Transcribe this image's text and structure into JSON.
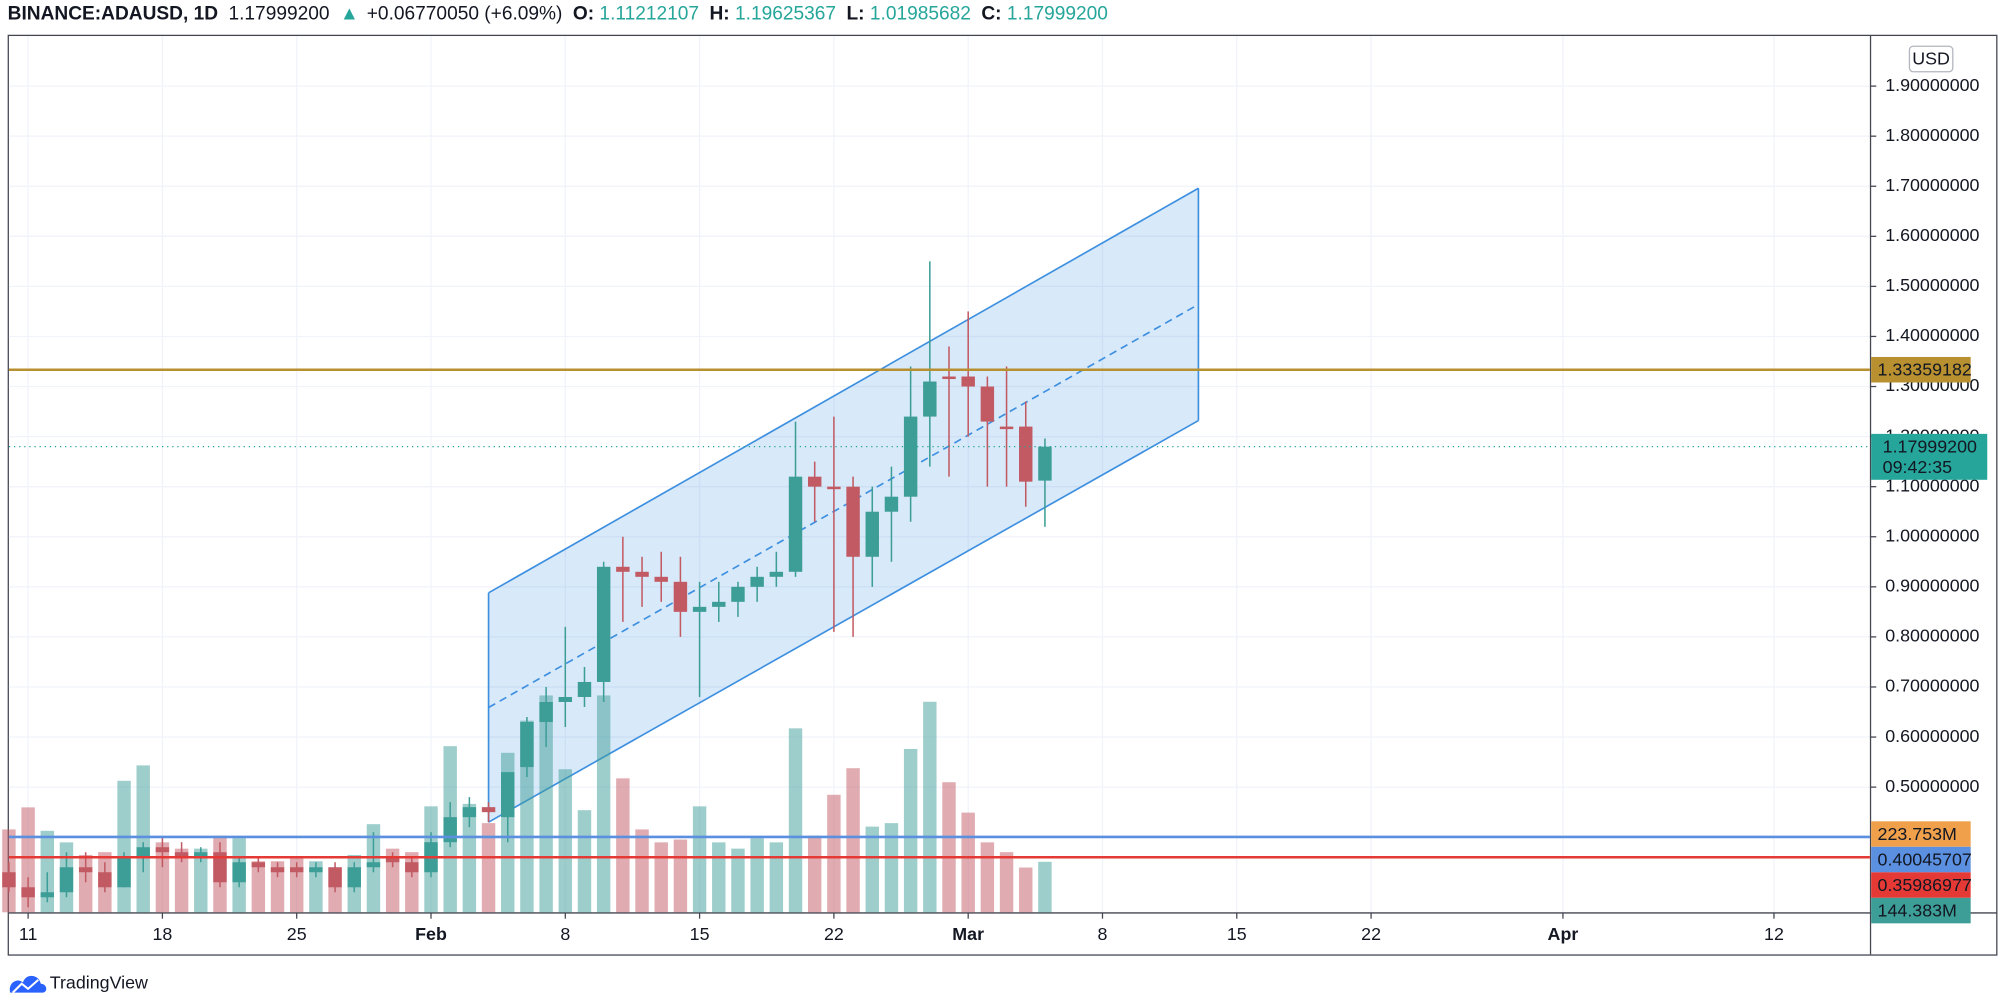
{
  "header": {
    "symbol": "BINANCE:ADAUSD, 1D",
    "last": "1.17999200",
    "change": "+0.06770050 (+6.09%)",
    "open_label": "O:",
    "open": "1.11212107",
    "high_label": "H:",
    "high": "1.19625367",
    "low_label": "L:",
    "low": "1.01985682",
    "close_label": "C:",
    "close": "1.17999200"
  },
  "currency": "USD",
  "brand": "TradingView",
  "chart_data": {
    "type": "candlestick",
    "x": [
      "01-10",
      "01-11",
      "01-12",
      "01-13",
      "01-14",
      "01-15",
      "01-16",
      "01-17",
      "01-18",
      "01-19",
      "01-20",
      "01-21",
      "01-22",
      "01-23",
      "01-24",
      "01-25",
      "01-26",
      "01-27",
      "01-28",
      "01-29",
      "01-30",
      "01-31",
      "02-01",
      "02-02",
      "02-03",
      "02-04",
      "02-05",
      "02-06",
      "02-07",
      "02-08",
      "02-09",
      "02-10",
      "02-11",
      "02-12",
      "02-13",
      "02-14",
      "02-15",
      "02-16",
      "02-17",
      "02-18",
      "02-19",
      "02-20",
      "02-21",
      "02-22",
      "02-23",
      "02-24",
      "02-25",
      "02-26",
      "02-27",
      "02-28",
      "03-01",
      "03-02",
      "03-03",
      "03-04",
      "03-05"
    ],
    "open": [
      0.33,
      0.3,
      0.28,
      0.29,
      0.34,
      0.33,
      0.3,
      0.36,
      0.38,
      0.37,
      0.36,
      0.37,
      0.31,
      0.35,
      0.34,
      0.34,
      0.33,
      0.34,
      0.3,
      0.34,
      0.36,
      0.35,
      0.33,
      0.39,
      0.44,
      0.46,
      0.44,
      0.54,
      0.63,
      0.67,
      0.68,
      0.71,
      0.94,
      0.93,
      0.92,
      0.91,
      0.85,
      0.86,
      0.87,
      0.9,
      0.92,
      0.93,
      1.12,
      1.1,
      1.1,
      0.96,
      1.05,
      1.08,
      1.24,
      1.32,
      1.32,
      1.3,
      1.22,
      1.22,
      1.11212107
    ],
    "high": [
      0.35,
      0.32,
      0.33,
      0.37,
      0.37,
      0.35,
      0.37,
      0.39,
      0.4,
      0.39,
      0.38,
      0.39,
      0.36,
      0.36,
      0.35,
      0.35,
      0.35,
      0.35,
      0.35,
      0.41,
      0.37,
      0.36,
      0.41,
      0.47,
      0.48,
      0.47,
      0.52,
      0.64,
      0.7,
      0.82,
      0.74,
      0.95,
      1.0,
      0.96,
      0.97,
      0.96,
      0.91,
      0.91,
      0.91,
      0.94,
      0.97,
      1.23,
      1.15,
      1.24,
      1.12,
      1.1,
      1.14,
      1.34,
      1.55,
      1.38,
      1.45,
      1.32,
      1.34,
      1.27,
      1.19625367
    ],
    "low": [
      0.29,
      0.26,
      0.27,
      0.28,
      0.31,
      0.29,
      0.3,
      0.33,
      0.34,
      0.35,
      0.35,
      0.3,
      0.3,
      0.33,
      0.32,
      0.32,
      0.32,
      0.29,
      0.29,
      0.33,
      0.34,
      0.32,
      0.32,
      0.38,
      0.42,
      0.43,
      0.39,
      0.52,
      0.58,
      0.62,
      0.66,
      0.67,
      0.83,
      0.86,
      0.87,
      0.8,
      0.68,
      0.83,
      0.84,
      0.87,
      0.9,
      0.92,
      1.03,
      0.81,
      0.8,
      0.9,
      0.95,
      1.03,
      1.14,
      1.12,
      1.2,
      1.1,
      1.1,
      1.06,
      1.01985682
    ],
    "close": [
      0.3,
      0.28,
      0.29,
      0.34,
      0.33,
      0.3,
      0.36,
      0.38,
      0.37,
      0.36,
      0.37,
      0.31,
      0.35,
      0.34,
      0.33,
      0.33,
      0.34,
      0.3,
      0.34,
      0.35,
      0.35,
      0.33,
      0.39,
      0.44,
      0.46,
      0.45,
      0.53,
      0.63,
      0.67,
      0.68,
      0.71,
      0.94,
      0.93,
      0.92,
      0.91,
      0.85,
      0.86,
      0.87,
      0.9,
      0.92,
      0.93,
      1.12,
      1.1,
      1.095,
      0.96,
      1.05,
      1.08,
      1.24,
      1.31,
      1.315,
      1.3,
      1.23,
      1.215,
      1.11,
      1.179992
    ],
    "up_color": "#3d9e97",
    "down_color": "#c25a63",
    "volume": {
      "values": [
        237,
        300,
        233,
        200,
        164,
        172,
        376,
        420,
        200,
        182,
        182,
        219,
        212,
        146,
        146,
        157,
        146,
        128,
        164,
        252,
        182,
        172,
        303,
        475,
        310,
        255,
        456,
        548,
        620,
        409,
        292,
        620,
        383,
        237,
        200,
        208,
        303,
        200,
        182,
        212,
        200,
        526,
        219,
        336,
        412,
        245,
        255,
        467,
        602,
        372,
        285,
        200,
        172,
        128,
        144.383
      ],
      "last_label": "144.383M",
      "ma": 223.753,
      "ma_label": "223.753M",
      "ma_color": "#f0a04b"
    },
    "xlim": [
      "01-10",
      "04-17"
    ],
    "xticks": [
      {
        "value": "01-11",
        "label": "11"
      },
      {
        "value": "01-18",
        "label": "18"
      },
      {
        "value": "01-25",
        "label": "25"
      },
      {
        "value": "02-01",
        "label": "Feb"
      },
      {
        "value": "02-08",
        "label": "8"
      },
      {
        "value": "02-15",
        "label": "15"
      },
      {
        "value": "02-22",
        "label": "22"
      },
      {
        "value": "03-01",
        "label": "Mar"
      },
      {
        "value": "03-08",
        "label": "8"
      },
      {
        "value": "03-15",
        "label": "15"
      },
      {
        "value": "03-22",
        "label": "22"
      },
      {
        "value": "04-01",
        "label": "Apr"
      },
      {
        "value": "04-12",
        "label": "12"
      }
    ],
    "ylim": [
      0.25,
      2.0
    ],
    "yticks": [
      {
        "value": 0.5,
        "label": "0.50000000"
      },
      {
        "value": 0.6,
        "label": "0.60000000"
      },
      {
        "value": 0.7,
        "label": "0.70000000"
      },
      {
        "value": 0.8,
        "label": "0.80000000"
      },
      {
        "value": 0.9,
        "label": "0.90000000"
      },
      {
        "value": 1.0,
        "label": "1.00000000"
      },
      {
        "value": 1.1,
        "label": "1.10000000"
      },
      {
        "value": 1.2,
        "label": "1.20000000"
      },
      {
        "value": 1.3,
        "label": "1.30000000"
      },
      {
        "value": 1.4,
        "label": "1.40000000"
      },
      {
        "value": 1.5,
        "label": "1.50000000"
      },
      {
        "value": 1.6,
        "label": "1.60000000"
      },
      {
        "value": 1.7,
        "label": "1.70000000"
      },
      {
        "value": 1.8,
        "label": "1.80000000"
      },
      {
        "value": 1.9,
        "label": "1.90000000"
      }
    ],
    "grid": true,
    "current_price": {
      "value": 1.179992,
      "label": "1.17999200",
      "countdown": "09:42:35",
      "color": "#26a69a"
    },
    "hlines": [
      {
        "value": 1.33359182,
        "color": "#b8902f"
      },
      {
        "value": 0.40045707,
        "color": "#5b8fe0"
      },
      {
        "value": 0.35986977,
        "color": "#e53935"
      }
    ],
    "channel": {
      "x": [
        "02-04",
        "03-13"
      ],
      "upper": [
        0.888,
        1.696
      ],
      "lower": [
        0.43,
        1.232
      ],
      "color": "#3d8fe0"
    }
  }
}
